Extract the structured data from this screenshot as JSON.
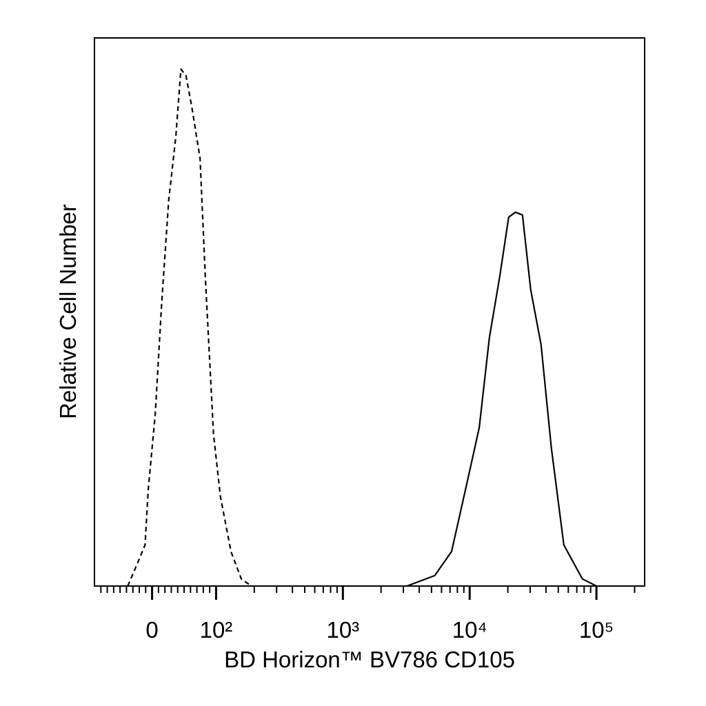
{
  "chart_data": {
    "type": "line",
    "xlabel": "BD Horizon™ BV786 CD105",
    "ylabel": "Relative Cell Number",
    "xlim": [
      -90,
      240000
    ],
    "ylim": [
      0,
      100
    ],
    "xticks": [
      0,
      {
        "value": 100,
        "label": "10²"
      },
      {
        "value": 1000,
        "label": "10³"
      },
      {
        "value": 10000,
        "label": "10⁴"
      },
      {
        "value": 100000,
        "label": "10⁵"
      }
    ],
    "xminorticks": [
      -80,
      -70,
      -60,
      -50,
      -40,
      -30,
      -20,
      -10,
      10,
      20,
      30,
      40,
      50,
      60,
      70,
      80,
      90,
      200,
      300,
      400,
      500,
      600,
      700,
      800,
      900,
      2000,
      3000,
      4000,
      5000,
      6000,
      7000,
      8000,
      9000,
      20000,
      30000,
      40000,
      50000,
      60000,
      70000,
      80000,
      90000,
      200000
    ],
    "series": [
      {
        "color": "#000000",
        "dashed": true,
        "x": [
          -38,
          -22,
          -11,
          -6,
          5,
          15,
          26,
          37,
          45,
          53,
          62,
          75,
          83,
          96,
          108,
          131,
          158,
          190
        ],
        "values": [
          0,
          4.4,
          7.5,
          17.6,
          31.4,
          51.6,
          70.4,
          81.8,
          94.3,
          93.1,
          87.4,
          78,
          56.6,
          27.7,
          16.4,
          6.3,
          1.3,
          0
        ]
      },
      {
        "color": "#000000",
        "dashed": false,
        "x": [
          3200,
          5300,
          7200,
          9800,
          11900,
          14300,
          17300,
          20300,
          23000,
          26100,
          30300,
          36600,
          44100,
          55300,
          77500,
          100000
        ],
        "values": [
          0,
          1.9,
          6.3,
          20.1,
          28.9,
          45.3,
          56.6,
          67.3,
          68.2,
          67.7,
          54.1,
          44,
          25.2,
          7.5,
          1.3,
          0
        ]
      }
    ]
  }
}
